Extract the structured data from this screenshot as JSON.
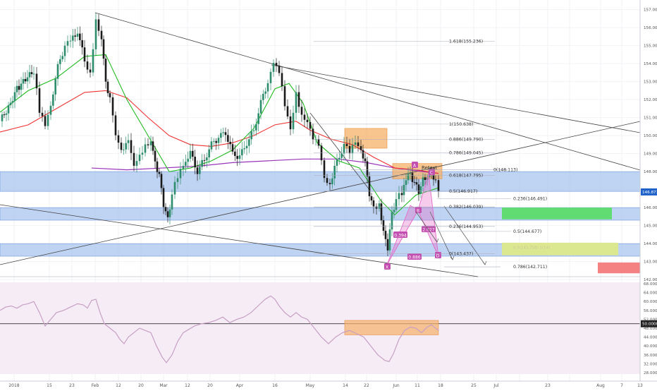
{
  "chart_data": [
    {
      "type": "candlestick",
      "title": "",
      "x_tick_labels": [
        "2018",
        "15",
        "23",
        "Feb",
        "12",
        "20",
        "Mar",
        "12",
        "20",
        "Apr",
        "16",
        "May",
        "14",
        "22",
        "Jun",
        "11",
        "18",
        "25",
        "Jul",
        "23",
        "Aug",
        "7",
        "13"
      ],
      "y_tick_labels": [
        "142.00",
        "143.00",
        "144.00",
        "145.00",
        "146.00",
        "147.00",
        "148.00",
        "149.00",
        "150.00",
        "151.00",
        "152.00",
        "153.00",
        "154.00",
        "155.00",
        "156.00",
        "157.00"
      ],
      "ylim": [
        142.0,
        157.3
      ],
      "last_price": "146.871",
      "series": [
        {
          "name": "",
          "color": "#22bb22",
          "kind": "ma"
        },
        {
          "name": "",
          "color": "#ee3333",
          "kind": "ma"
        },
        {
          "name": "",
          "color": "#9933bb",
          "kind": "ma"
        }
      ],
      "price_points": [
        [
          0,
          150.8
        ],
        [
          12,
          151.6
        ],
        [
          24,
          152.6
        ],
        [
          36,
          153.1
        ],
        [
          48,
          153.6
        ],
        [
          56,
          151.3
        ],
        [
          64,
          150.7
        ],
        [
          72,
          151.8
        ],
        [
          82,
          153.8
        ],
        [
          92,
          155.0
        ],
        [
          100,
          155.2
        ],
        [
          110,
          155.8
        ],
        [
          120,
          154.2
        ],
        [
          128,
          153.5
        ],
        [
          136,
          156.3
        ],
        [
          144,
          155.2
        ],
        [
          150,
          153.0
        ],
        [
          156,
          152.0
        ],
        [
          164,
          150.2
        ],
        [
          172,
          149.3
        ],
        [
          182,
          149.6
        ],
        [
          190,
          148.5
        ],
        [
          198,
          149.0
        ],
        [
          206,
          149.4
        ],
        [
          214,
          149.5
        ],
        [
          220,
          148.5
        ],
        [
          226,
          147.8
        ],
        [
          232,
          146.2
        ],
        [
          238,
          145.3
        ],
        [
          244,
          146.8
        ],
        [
          252,
          147.7
        ],
        [
          260,
          148.5
        ],
        [
          270,
          149.0
        ],
        [
          280,
          148.0
        ],
        [
          290,
          148.7
        ],
        [
          300,
          149.5
        ],
        [
          310,
          149.9
        ],
        [
          320,
          150.2
        ],
        [
          330,
          149.0
        ],
        [
          340,
          148.8
        ],
        [
          350,
          149.6
        ],
        [
          360,
          150.3
        ],
        [
          370,
          151.8
        ],
        [
          380,
          153.0
        ],
        [
          388,
          153.9
        ],
        [
          396,
          153.5
        ],
        [
          404,
          151.8
        ],
        [
          412,
          150.5
        ],
        [
          420,
          152.4
        ],
        [
          428,
          151.0
        ],
        [
          436,
          150.6
        ],
        [
          444,
          149.8
        ],
        [
          452,
          149.6
        ],
        [
          460,
          147.8
        ],
        [
          468,
          147.3
        ],
        [
          478,
          148.6
        ],
        [
          488,
          149.4
        ],
        [
          496,
          149.1
        ],
        [
          504,
          149.8
        ],
        [
          512,
          149.3
        ],
        [
          518,
          148.5
        ],
        [
          524,
          146.8
        ],
        [
          530,
          145.9
        ],
        [
          538,
          146.3
        ],
        [
          544,
          144.6
        ],
        [
          550,
          143.8
        ],
        [
          556,
          145.6
        ],
        [
          562,
          146.5
        ],
        [
          570,
          146.8
        ],
        [
          576,
          147.7
        ],
        [
          582,
          147.8
        ],
        [
          588,
          147.4
        ],
        [
          594,
          146.9
        ],
        [
          600,
          147.5
        ],
        [
          606,
          147.8
        ],
        [
          612,
          148.0
        ],
        [
          618,
          147.4
        ],
        [
          622,
          146.9
        ]
      ],
      "ma_green": [
        [
          0,
          151.3
        ],
        [
          40,
          152.5
        ],
        [
          80,
          153.2
        ],
        [
          120,
          154.4
        ],
        [
          150,
          154.5
        ],
        [
          180,
          152.0
        ],
        [
          210,
          150.0
        ],
        [
          240,
          148.0
        ],
        [
          270,
          148.2
        ],
        [
          300,
          148.6
        ],
        [
          330,
          149.2
        ],
        [
          360,
          150.4
        ],
        [
          390,
          152.6
        ],
        [
          410,
          152.9
        ],
        [
          430,
          151.8
        ],
        [
          450,
          149.6
        ],
        [
          480,
          148.6
        ],
        [
          510,
          148.2
        ],
        [
          540,
          146.4
        ],
        [
          560,
          145.6
        ],
        [
          590,
          146.7
        ],
        [
          622,
          147.1
        ]
      ],
      "ma_red": [
        [
          0,
          150.2
        ],
        [
          40,
          150.6
        ],
        [
          80,
          151.5
        ],
        [
          120,
          152.4
        ],
        [
          150,
          152.5
        ],
        [
          180,
          152.1
        ],
        [
          210,
          151.0
        ],
        [
          240,
          150.0
        ],
        [
          270,
          149.5
        ],
        [
          300,
          149.4
        ],
        [
          330,
          149.6
        ],
        [
          360,
          150.0
        ],
        [
          390,
          150.6
        ],
        [
          420,
          150.8
        ],
        [
          440,
          150.3
        ],
        [
          470,
          149.8
        ],
        [
          500,
          149.5
        ],
        [
          530,
          148.8
        ],
        [
          560,
          148.2
        ],
        [
          590,
          148.1
        ],
        [
          622,
          147.9
        ]
      ],
      "ma_purple": [
        [
          130,
          148.2
        ],
        [
          180,
          148.1
        ],
        [
          230,
          148.2
        ],
        [
          280,
          148.3
        ],
        [
          330,
          148.5
        ],
        [
          380,
          148.6
        ],
        [
          430,
          148.7
        ],
        [
          480,
          148.7
        ],
        [
          520,
          148.5
        ],
        [
          560,
          148.2
        ],
        [
          600,
          148.0
        ],
        [
          622,
          147.9
        ]
      ],
      "fib_labels": [
        "1.618(155.236)",
        "1(150.638)",
        "0.886(149.790)",
        "0.786(149.045)",
        "0.618(147.795)",
        "0(148.113)",
        "0.5(146.917)",
        "0.236(146.491)",
        "0.382(146.039)",
        "0.236(144.953)",
        "0.5(144.677)",
        "0(143.437)",
        "0.786(142.711)"
      ],
      "fib_values": [
        155.236,
        150.638,
        149.79,
        149.045,
        147.795,
        148.113,
        146.917,
        146.491,
        146.039,
        144.953,
        144.677,
        143.437,
        142.711
      ],
      "pattern_labels": [
        "X",
        "A",
        "B",
        "C",
        "D",
        "0.394",
        "2.027",
        "0.886",
        "Retest"
      ],
      "zone_label_yellow": "0.5(143.758) 1(14)"
    },
    {
      "type": "line",
      "title": "",
      "y_tick_labels": [
        "28.0000",
        "32.0000",
        "36.0000",
        "40.0000",
        "44.0000",
        "48.0000",
        "52.0000",
        "56.0000",
        "60.0000",
        "64.0000",
        "68.0000"
      ],
      "ylim": [
        26.0,
        70.0
      ],
      "level_label": "50.0000",
      "level_value": 50.0,
      "series": [
        {
          "name": "",
          "color": "#c79fc3"
        }
      ],
      "points": [
        [
          0,
          56.0
        ],
        [
          8,
          57.5
        ],
        [
          16,
          58.0
        ],
        [
          24,
          57.0
        ],
        [
          32,
          58.5
        ],
        [
          40,
          59.0
        ],
        [
          48,
          60.0
        ],
        [
          56,
          55.0
        ],
        [
          64,
          49.0
        ],
        [
          72,
          52.0
        ],
        [
          80,
          55.0
        ],
        [
          90,
          56.0
        ],
        [
          100,
          57.5
        ],
        [
          110,
          59.0
        ],
        [
          118,
          58.5
        ],
        [
          124,
          57.0
        ],
        [
          130,
          60.5
        ],
        [
          136,
          61.0
        ],
        [
          142,
          55.0
        ],
        [
          148,
          50.0
        ],
        [
          156,
          48.0
        ],
        [
          164,
          46.0
        ],
        [
          170,
          43.0
        ],
        [
          176,
          41.0
        ],
        [
          182,
          44.0
        ],
        [
          190,
          46.0
        ],
        [
          198,
          48.0
        ],
        [
          206,
          47.0
        ],
        [
          214,
          46.0
        ],
        [
          222,
          40.0
        ],
        [
          230,
          35.0
        ],
        [
          236,
          32.5
        ],
        [
          244,
          36.0
        ],
        [
          252,
          42.0
        ],
        [
          260,
          46.0
        ],
        [
          268,
          47.5
        ],
        [
          276,
          49.0
        ],
        [
          286,
          50.0
        ],
        [
          296,
          50.5
        ],
        [
          306,
          51.5
        ],
        [
          316,
          53.0
        ],
        [
          326,
          50.5
        ],
        [
          336,
          52.0
        ],
        [
          346,
          53.0
        ],
        [
          356,
          55.0
        ],
        [
          366,
          58.0
        ],
        [
          376,
          61.0
        ],
        [
          384,
          62.5
        ],
        [
          390,
          61.0
        ],
        [
          396,
          58.0
        ],
        [
          404,
          55.0
        ],
        [
          412,
          53.0
        ],
        [
          420,
          55.0
        ],
        [
          428,
          53.0
        ],
        [
          436,
          52.0
        ],
        [
          446,
          48.0
        ],
        [
          456,
          44.0
        ],
        [
          466,
          41.0
        ],
        [
          476,
          44.0
        ],
        [
          486,
          46.0
        ],
        [
          496,
          47.0
        ],
        [
          506,
          45.5
        ],
        [
          516,
          44.0
        ],
        [
          526,
          40.0
        ],
        [
          536,
          36.0
        ],
        [
          546,
          33.5
        ],
        [
          552,
          33.0
        ],
        [
          558,
          36.5
        ],
        [
          566,
          43.0
        ],
        [
          574,
          47.0
        ],
        [
          582,
          48.5
        ],
        [
          590,
          48.0
        ],
        [
          598,
          46.0
        ],
        [
          606,
          48.5
        ],
        [
          612,
          49.5
        ],
        [
          618,
          48.0
        ],
        [
          622,
          47.0
        ]
      ]
    }
  ]
}
